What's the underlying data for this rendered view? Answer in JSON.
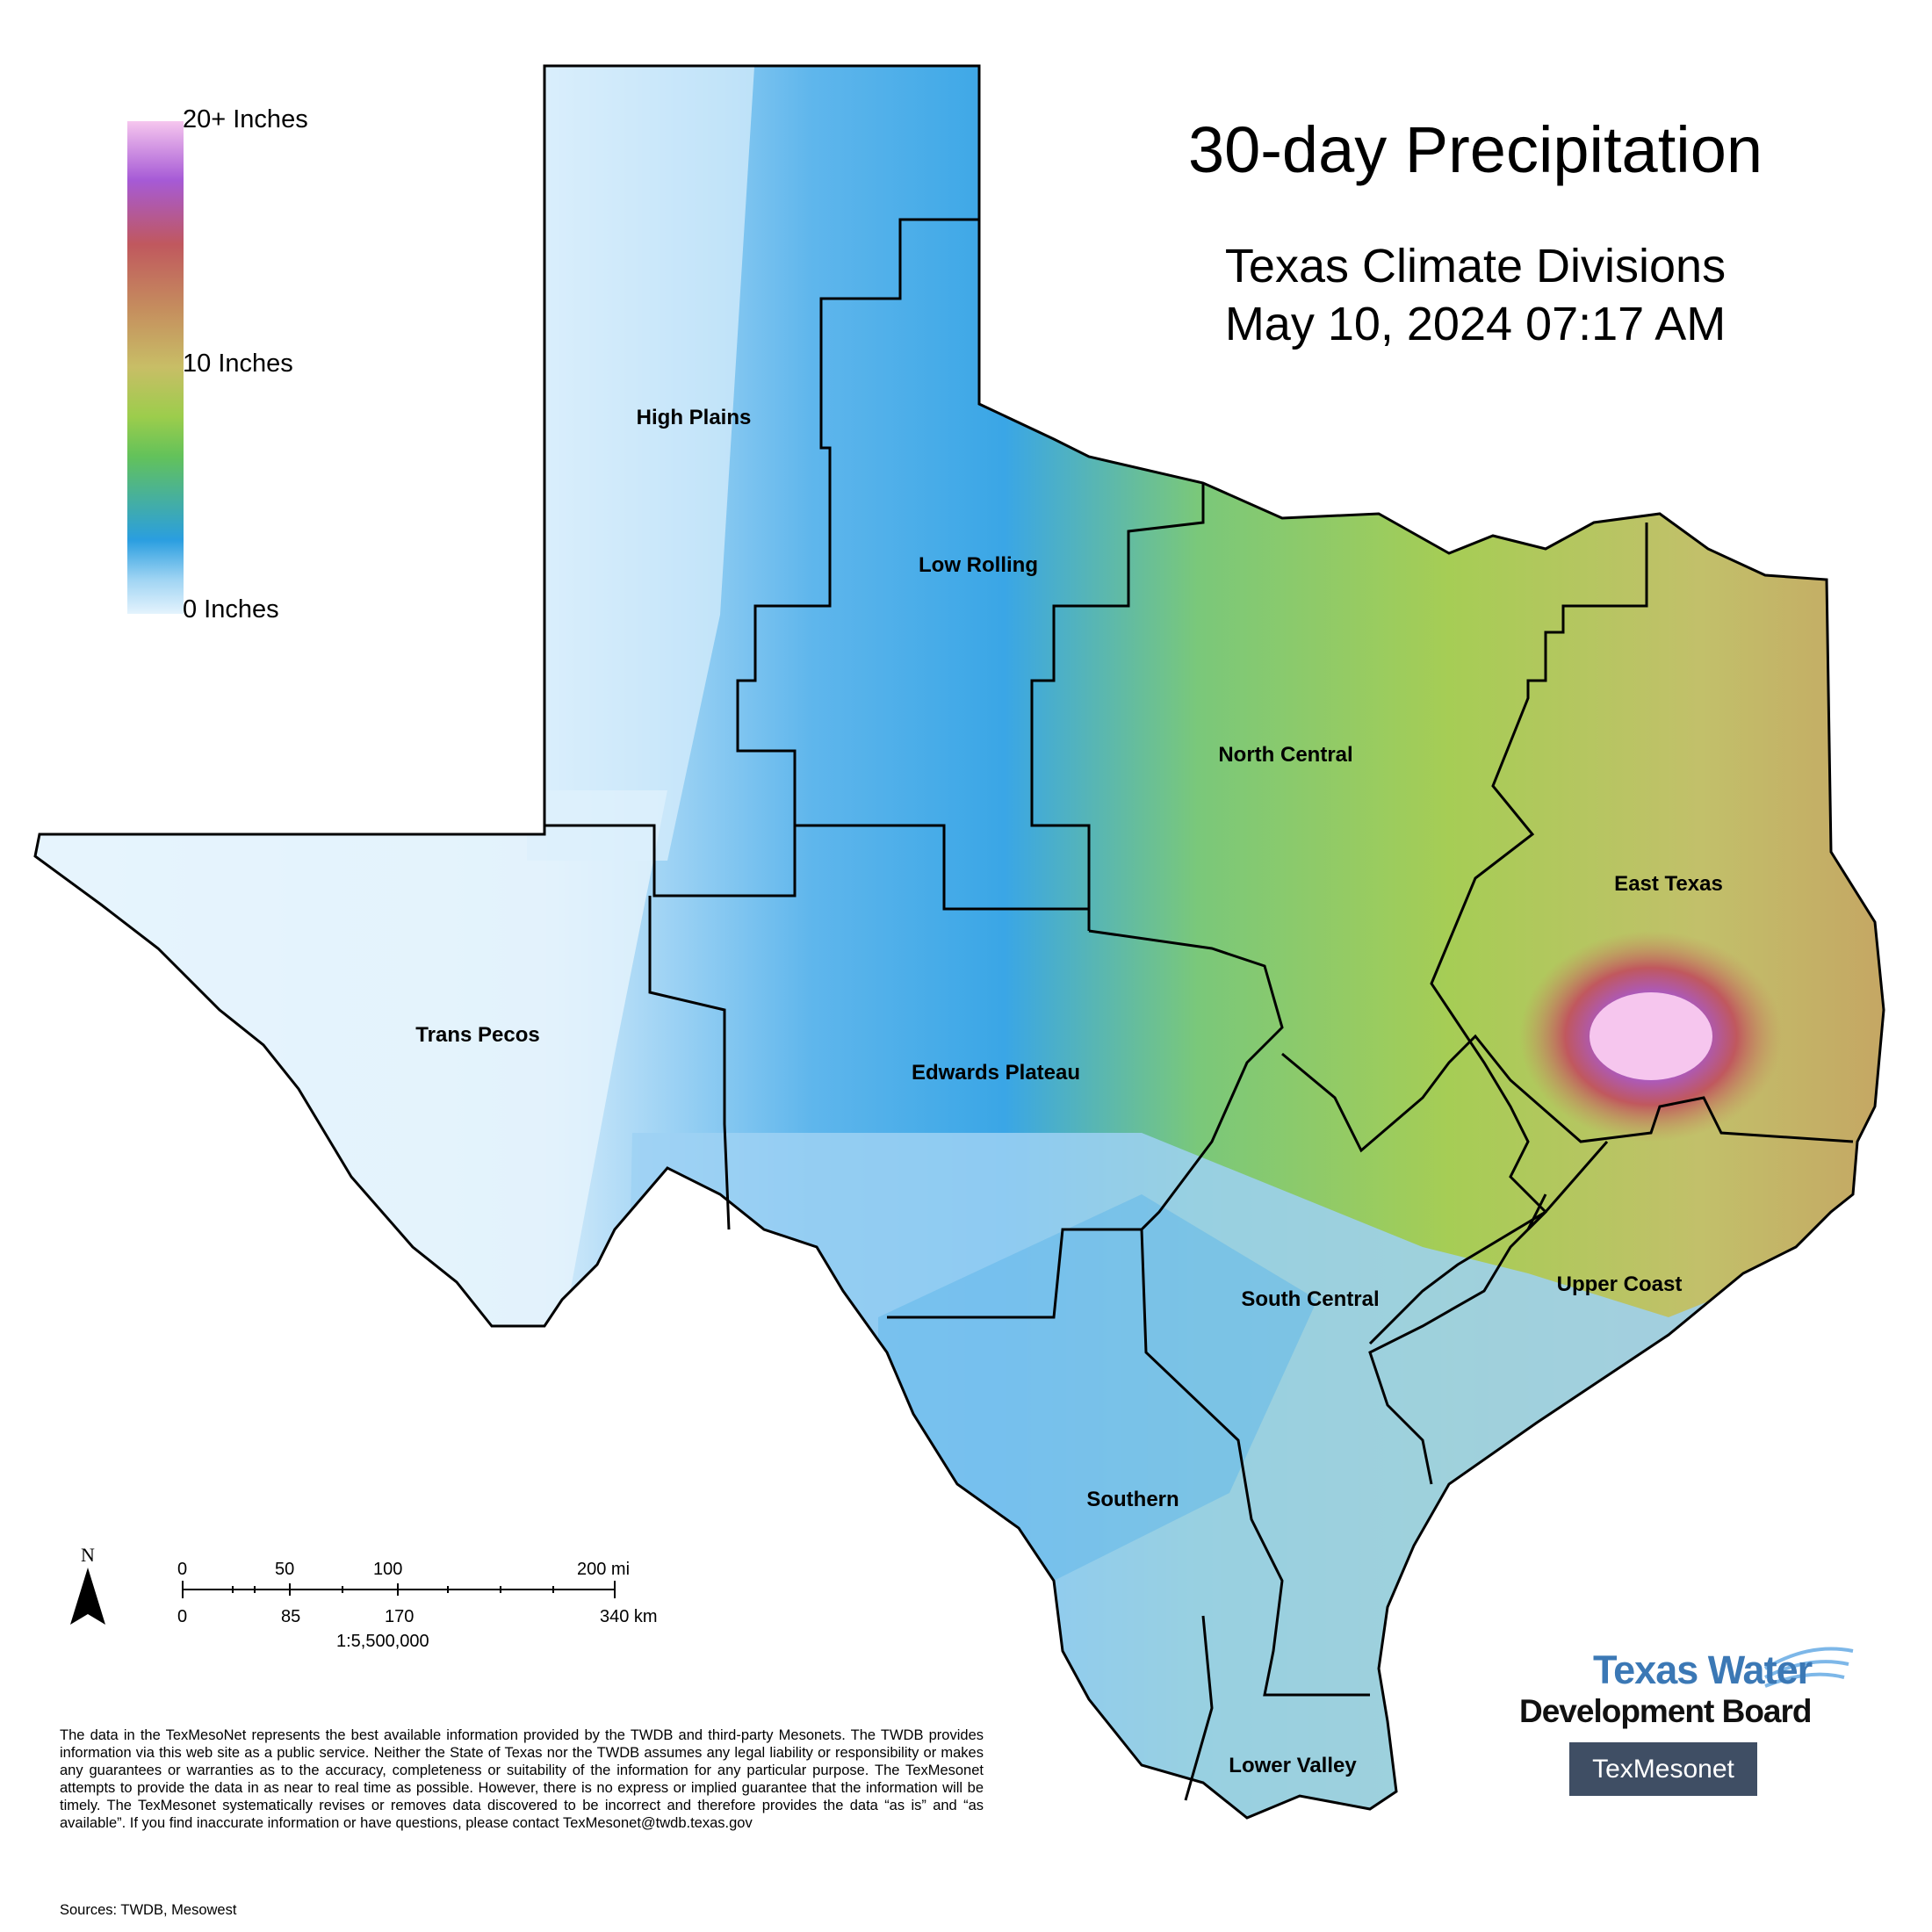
{
  "title": "30-day Precipitation",
  "subtitle_line1": "Texas Climate Divisions",
  "subtitle_line2": "May 10, 2024 07:17 AM",
  "legend": {
    "top_label": "20+ Inches",
    "mid_label": "10 Inches",
    "bottom_label": "0 Inches"
  },
  "regions": {
    "high_plains": "High Plains",
    "low_rolling": "Low Rolling",
    "north_central": "North Central",
    "east_texas": "East Texas",
    "trans_pecos": "Trans Pecos",
    "edwards_plateau": "Edwards Plateau",
    "south_central": "South Central",
    "upper_coast": "Upper Coast",
    "southern": "Southern",
    "lower_valley": "Lower Valley"
  },
  "north_arrow": "N",
  "scale_bar": {
    "mi_ticks": [
      "0",
      "50",
      "100",
      "200 mi"
    ],
    "km_ticks": [
      "0",
      "85",
      "170",
      "340 km"
    ],
    "ratio": "1:5,500,000"
  },
  "disclaimer": "The data in the TexMesoNet represents the best available information provided by the TWDB and third-party Mesonets. The TWDB provides information via this web site as a public service. Neither the State of Texas nor the TWDB assumes any legal liability or responsibility or makes any guarantees or warranties as to the accuracy, completeness or suitability of the information for any particular purpose. The TexMesonet attempts to provide the data in as near to real time as possible. However, there is no express or implied guarantee that the information will be timely. The TexMesonet systematically revises or removes data discovered to be incorrect and therefore provides the data “as is” and “as available”. If you find inaccurate information or have questions, please contact TexMesonet@twdb.texas.gov",
  "sources": "Sources: TWDB, Mesowest",
  "logo": {
    "line1": "Texas Water",
    "line2": "Development Board",
    "mesonet": "TexMesonet"
  },
  "colors": {
    "scale_top": "#f6c6ee",
    "scale_purple": "#a65ad6",
    "scale_red": "#c0585e",
    "scale_tan": "#c8be66",
    "scale_green": "#63c25a",
    "scale_blue": "#2a9ee0",
    "scale_bottom": "#e4f3fd",
    "mesonet_bg": "#3f4e64",
    "twdb_blue": "#3b78b5"
  }
}
